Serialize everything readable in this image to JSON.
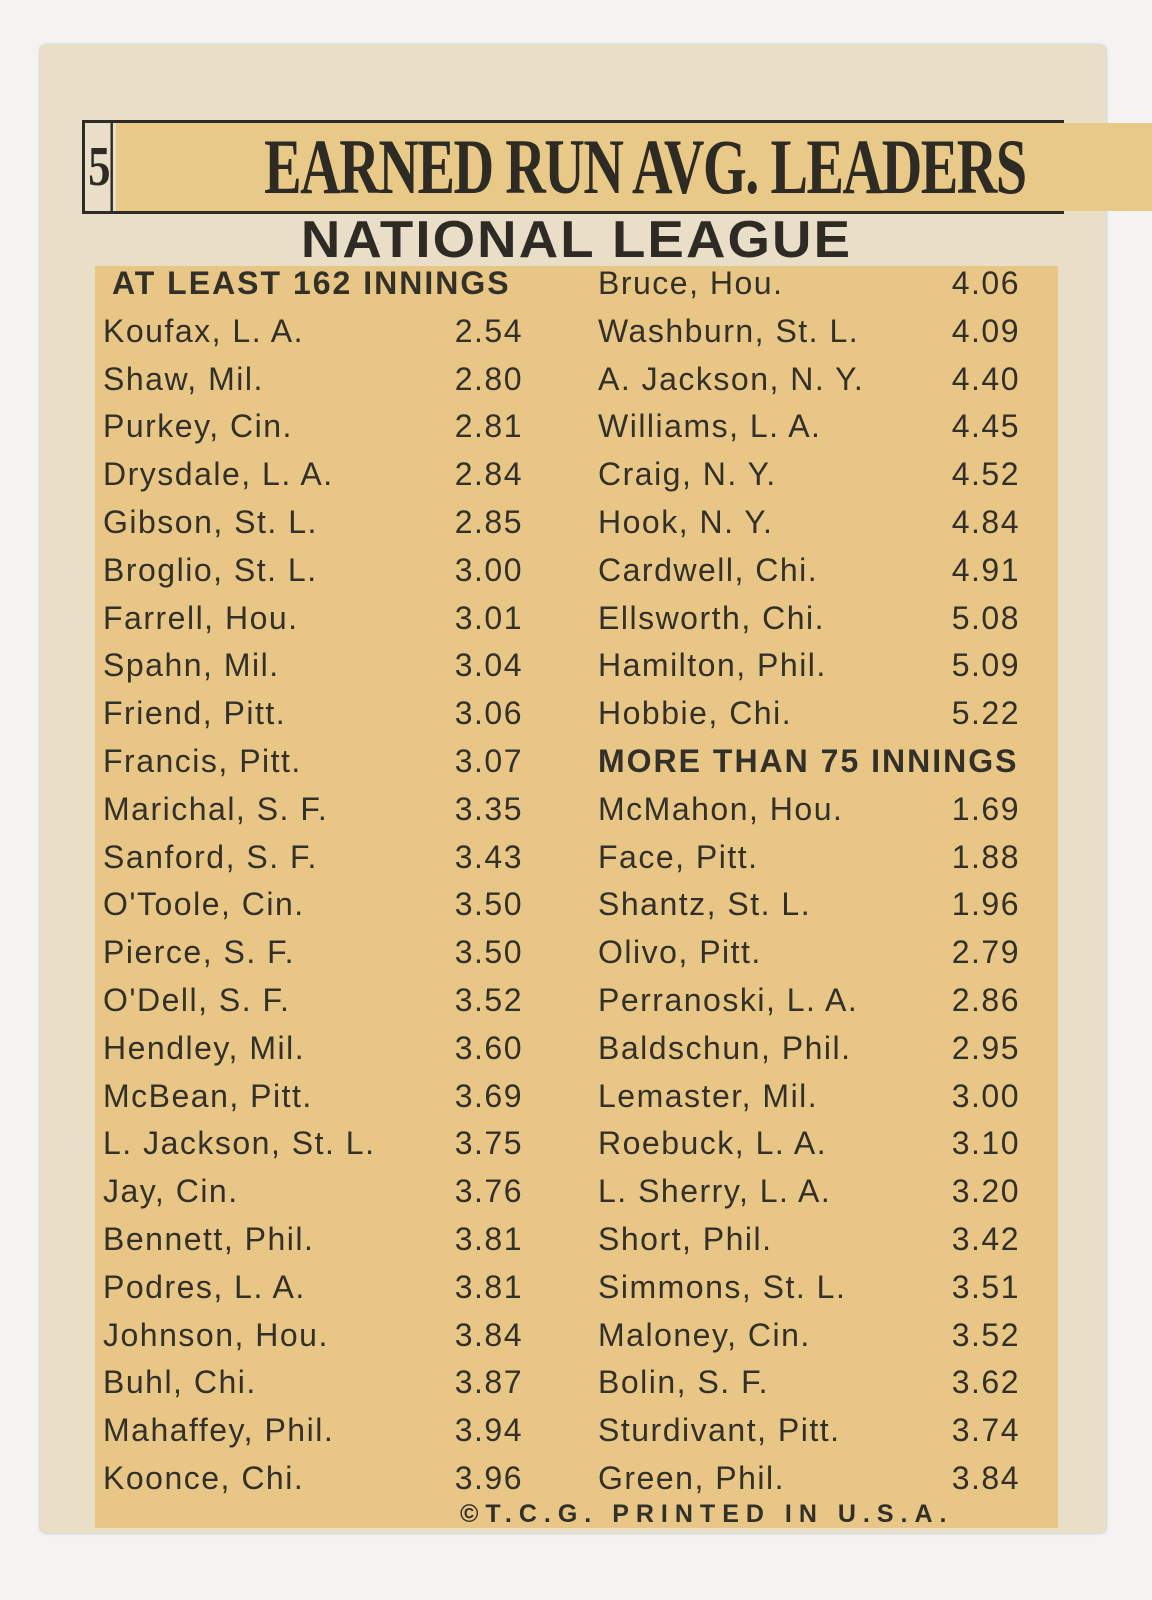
{
  "card_number": "5",
  "title": "EARNED RUN AVG. LEADERS",
  "league": "NATIONAL LEAGUE",
  "left_column": {
    "header": "AT LEAST 162 INNINGS",
    "rows": [
      {
        "name": "Koufax, L. A.",
        "era": "2.54"
      },
      {
        "name": "Shaw, Mil.",
        "era": "2.80"
      },
      {
        "name": "Purkey, Cin.",
        "era": "2.81"
      },
      {
        "name": "Drysdale, L. A.",
        "era": "2.84"
      },
      {
        "name": "Gibson, St. L.",
        "era": "2.85"
      },
      {
        "name": "Broglio, St. L.",
        "era": "3.00"
      },
      {
        "name": "Farrell, Hou.",
        "era": "3.01"
      },
      {
        "name": "Spahn, Mil.",
        "era": "3.04"
      },
      {
        "name": "Friend, Pitt.",
        "era": "3.06"
      },
      {
        "name": "Francis, Pitt.",
        "era": "3.07"
      },
      {
        "name": "Marichal, S. F.",
        "era": "3.35"
      },
      {
        "name": "Sanford, S. F.",
        "era": "3.43"
      },
      {
        "name": "O'Toole, Cin.",
        "era": "3.50"
      },
      {
        "name": "Pierce, S. F.",
        "era": "3.50"
      },
      {
        "name": "O'Dell, S. F.",
        "era": "3.52"
      },
      {
        "name": "Hendley, Mil.",
        "era": "3.60"
      },
      {
        "name": "McBean, Pitt.",
        "era": "3.69"
      },
      {
        "name": "L. Jackson, St. L.",
        "era": "3.75"
      },
      {
        "name": "Jay, Cin.",
        "era": "3.76"
      },
      {
        "name": "Bennett, Phil.",
        "era": "3.81"
      },
      {
        "name": "Podres, L. A.",
        "era": "3.81"
      },
      {
        "name": "Johnson,  Hou.",
        "era": "3.84"
      },
      {
        "name": "Buhl, Chi.",
        "era": "3.87"
      },
      {
        "name": "Mahaffey, Phil.",
        "era": "3.94"
      },
      {
        "name": "Koonce, Chi.",
        "era": "3.96"
      }
    ]
  },
  "right_column": {
    "rows_top": [
      {
        "name": "Bruce, Hou.",
        "era": "4.06"
      },
      {
        "name": "Washburn, St. L.",
        "era": "4.09"
      },
      {
        "name": "A. Jackson, N. Y.",
        "era": "4.40"
      },
      {
        "name": "Williams, L. A.",
        "era": "4.45"
      },
      {
        "name": "Craig, N. Y.",
        "era": "4.52"
      },
      {
        "name": "Hook, N. Y.",
        "era": "4.84"
      },
      {
        "name": "Cardwell, Chi.",
        "era": "4.91"
      },
      {
        "name": "Ellsworth, Chi.",
        "era": "5.08"
      },
      {
        "name": "Hamilton, Phil.",
        "era": "5.09"
      },
      {
        "name": "Hobbie, Chi.",
        "era": "5.22"
      }
    ],
    "header": "MORE THAN 75 INNINGS",
    "rows_bottom": [
      {
        "name": "McMahon, Hou.",
        "era": "1.69"
      },
      {
        "name": "Face, Pitt.",
        "era": "1.88"
      },
      {
        "name": "Shantz, St. L.",
        "era": "1.96"
      },
      {
        "name": "Olivo, Pitt.",
        "era": "2.79"
      },
      {
        "name": "Perranoski, L. A.",
        "era": "2.86"
      },
      {
        "name": "Baldschun, Phil.",
        "era": "2.95"
      },
      {
        "name": "Lemaster, Mil.",
        "era": "3.00"
      },
      {
        "name": "Roebuck, L. A.",
        "era": "3.10"
      },
      {
        "name": "L. Sherry, L. A.",
        "era": "3.20"
      },
      {
        "name": "Short, Phil.",
        "era": "3.42"
      },
      {
        "name": "Simmons, St. L.",
        "era": "3.51"
      },
      {
        "name": "Maloney, Cin.",
        "era": "3.52"
      },
      {
        "name": "Bolin, S. F.",
        "era": "3.62"
      },
      {
        "name": "Sturdivant, Pitt.",
        "era": "3.74"
      },
      {
        "name": "Green, Phil.",
        "era": "3.84"
      }
    ]
  },
  "footer": "©T.C.G. PRINTED IN U.S.A.",
  "colors": {
    "card": "#e9dfc9",
    "panel": "#e8c685",
    "ink": "#2e2a24"
  }
}
